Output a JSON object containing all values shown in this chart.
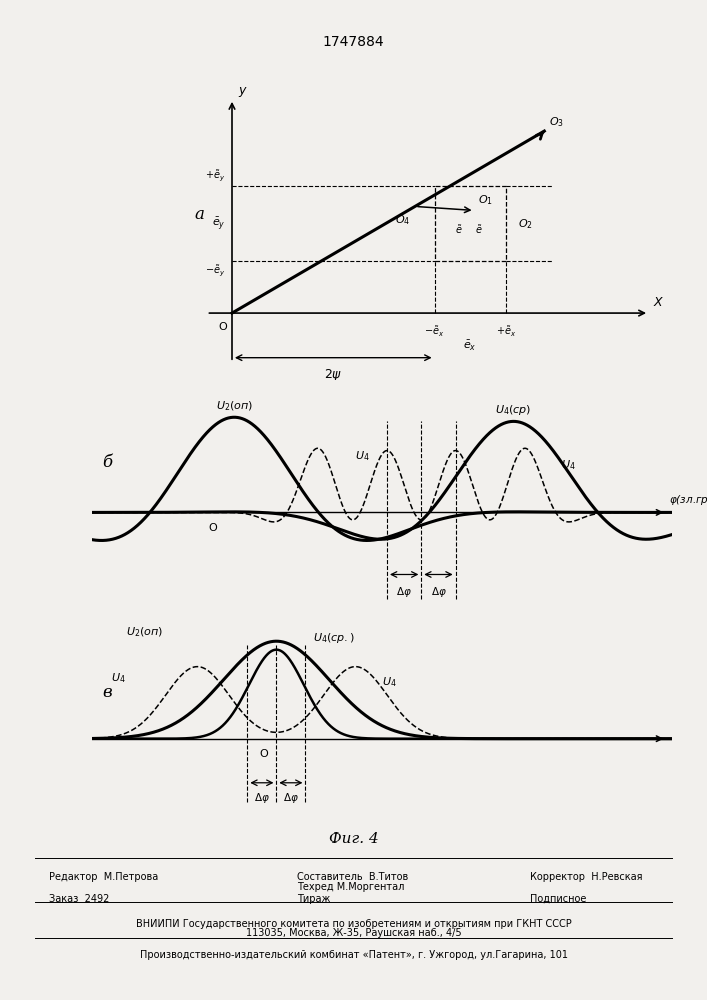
{
  "title": "1747884",
  "fig_caption": "Фиг. 4",
  "bg": "#f2f0ed",
  "panel_a_label": "а",
  "panel_b_label": "б",
  "panel_v_label": "в",
  "footer": {
    "editor": "Редактор  М.Петрова",
    "composer_title": "Составитель  В.Титов",
    "techred": "Техред М.Моргентал",
    "corrector": "Корректор  Н.Ревская",
    "order": "Заказ  2492",
    "tirazh": "Тираж",
    "podpisnoe": "Подписное",
    "vniipи": "ВНИИПИ Государственного комитета по изобретениям и открытиям при ГКНТ СССР",
    "address": "113035, Москва, Ж-35, Раушская наб., 4/5",
    "plant": "Производственно-издательский комбинат «Патент», г. Ужгород, ул.Гагарина, 101"
  }
}
